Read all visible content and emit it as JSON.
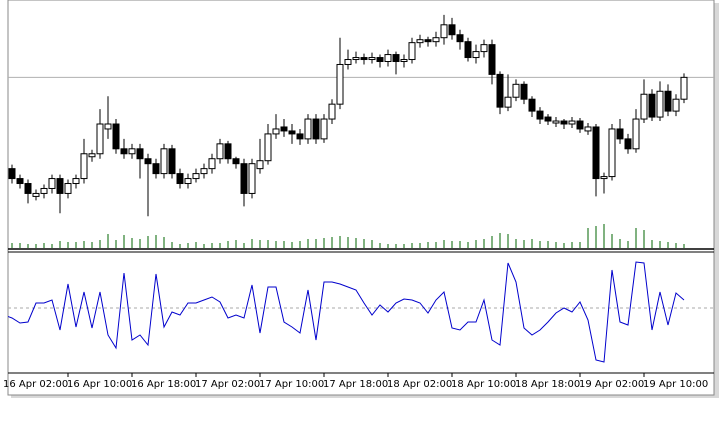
{
  "chart_data": [
    {
      "type": "candlestick",
      "categories": [
        "16 Apr 02:00",
        null,
        null,
        null,
        null,
        null,
        null,
        null,
        "16 Apr 10:00",
        null,
        null,
        null,
        null,
        null,
        null,
        null,
        "16 Apr 18:00",
        null,
        null,
        null,
        null,
        null,
        null,
        null,
        "17 Apr 02:00",
        null,
        null,
        null,
        null,
        null,
        null,
        null,
        "17 Apr 10:00",
        null,
        null,
        null,
        null,
        null,
        null,
        null,
        "17 Apr 18:00",
        null,
        null,
        null,
        null,
        null,
        null,
        null,
        "18 Apr 02:00",
        null,
        null,
        null,
        null,
        null,
        null,
        null,
        "18 Apr 10:00",
        null,
        null,
        null,
        null,
        null,
        null,
        null,
        "18 Apr 18:00",
        null,
        null,
        null,
        null,
        null,
        null,
        null,
        "19 Apr 02:00",
        null,
        null,
        null,
        null,
        null,
        null,
        null,
        "19 Apr 10:00",
        null,
        null,
        null,
        null,
        null
      ],
      "open": [
        85,
        80,
        70,
        65,
        52,
        55,
        60,
        70,
        55,
        65,
        70,
        92,
        95,
        120,
        125,
        100,
        95,
        100,
        90,
        85,
        75,
        100,
        75,
        65,
        70,
        75,
        80,
        90,
        105,
        90,
        85,
        55,
        80,
        88,
        115,
        122,
        118,
        115,
        110,
        130,
        110,
        130,
        145,
        185,
        190,
        192,
        190,
        192,
        188,
        195,
        188,
        190,
        207,
        210,
        208,
        212,
        225,
        215,
        208,
        192,
        198,
        205,
        175,
        142,
        152,
        165,
        150,
        138,
        132,
        126,
        128,
        125,
        128,
        118,
        122,
        70,
        72,
        120,
        110,
        100,
        130,
        155,
        132,
        158,
        138,
        150
      ],
      "high": [
        89,
        84,
        74,
        69,
        59,
        64,
        74,
        74,
        69,
        74,
        110,
        99,
        140,
        153,
        130,
        110,
        105,
        105,
        95,
        90,
        105,
        104,
        80,
        75,
        80,
        85,
        95,
        110,
        108,
        92,
        90,
        90,
        110,
        125,
        135,
        130,
        125,
        120,
        135,
        135,
        135,
        150,
        212,
        200,
        198,
        196,
        197,
        195,
        200,
        198,
        195,
        212,
        215,
        213,
        218,
        235,
        232,
        220,
        212,
        205,
        210,
        210,
        178,
        175,
        170,
        168,
        153,
        142,
        135,
        132,
        130,
        132,
        131,
        126,
        125,
        76,
        125,
        130,
        115,
        140,
        170,
        160,
        168,
        165,
        155,
        176
      ],
      "low": [
        75,
        65,
        60,
        45,
        48,
        50,
        55,
        35,
        50,
        60,
        65,
        87,
        90,
        110,
        95,
        90,
        90,
        70,
        32,
        70,
        70,
        70,
        60,
        60,
        66,
        70,
        75,
        85,
        85,
        80,
        42,
        50,
        75,
        84,
        110,
        112,
        105,
        104,
        105,
        105,
        106,
        125,
        140,
        180,
        186,
        185,
        186,
        182,
        183,
        175,
        182,
        186,
        202,
        203,
        203,
        205,
        210,
        200,
        188,
        186,
        192,
        165,
        135,
        138,
        148,
        145,
        132,
        125,
        124,
        122,
        120,
        121,
        116,
        114,
        52,
        55,
        68,
        105,
        95,
        96,
        126,
        128,
        128,
        133,
        133,
        146
      ],
      "close": [
        80,
        70,
        65,
        55,
        55,
        60,
        70,
        55,
        65,
        70,
        95,
        95,
        125,
        125,
        100,
        95,
        100,
        90,
        85,
        75,
        100,
        75,
        65,
        70,
        75,
        80,
        90,
        105,
        90,
        85,
        55,
        85,
        88,
        115,
        120,
        118,
        115,
        110,
        130,
        110,
        130,
        145,
        185,
        190,
        192,
        190,
        192,
        188,
        195,
        188,
        190,
        207,
        210,
        208,
        212,
        225,
        215,
        208,
        192,
        198,
        205,
        175,
        142,
        152,
        165,
        150,
        138,
        130,
        128,
        128,
        125,
        128,
        120,
        122,
        70,
        72,
        120,
        110,
        100,
        130,
        155,
        132,
        158,
        138,
        150,
        172
      ],
      "volume": [
        4,
        5,
        5,
        4,
        4,
        5,
        4,
        7,
        6,
        6,
        7,
        6,
        8,
        14,
        8,
        13,
        10,
        9,
        12,
        13,
        11,
        6,
        4,
        5,
        6,
        4,
        5,
        5,
        7,
        8,
        5,
        9,
        8,
        8,
        7,
        7,
        6,
        7,
        9,
        9,
        10,
        11,
        12,
        11,
        10,
        9,
        8,
        5,
        4,
        4,
        4,
        5,
        5,
        6,
        6,
        8,
        7,
        7,
        6,
        8,
        9,
        12,
        15,
        14,
        9,
        8,
        9,
        7,
        7,
        6,
        5,
        6,
        6,
        20,
        22,
        24,
        14,
        9,
        7,
        20,
        18,
        8,
        7,
        6,
        5,
        4
      ],
      "ylim": [
        0,
        250
      ],
      "volume_lim": [
        0,
        30
      ],
      "price_line": 172,
      "up_color": "#ffffff",
      "down_color": "#000000",
      "volume_color": "#006400"
    },
    {
      "type": "line",
      "values": [
        50,
        47,
        42,
        43,
        62,
        62,
        65,
        35,
        81,
        38,
        73,
        37,
        73,
        30,
        17,
        92,
        25,
        30,
        20,
        91,
        38,
        53,
        50,
        62,
        62,
        65,
        68,
        63,
        47,
        50,
        47,
        80,
        32,
        78,
        78,
        43,
        38,
        32,
        75,
        25,
        83,
        83,
        81,
        78,
        75,
        62,
        50,
        60,
        53,
        62,
        66,
        65,
        62,
        52,
        65,
        73,
        37,
        35,
        43,
        43,
        65,
        25,
        20,
        102,
        83,
        37,
        30,
        35,
        43,
        52,
        57,
        53,
        63,
        45,
        5,
        3,
        95,
        43,
        40,
        103,
        102,
        35,
        73,
        40,
        72,
        65
      ],
      "ylim": [
        0,
        110
      ],
      "level": 57,
      "color": "#0000cc"
    }
  ]
}
